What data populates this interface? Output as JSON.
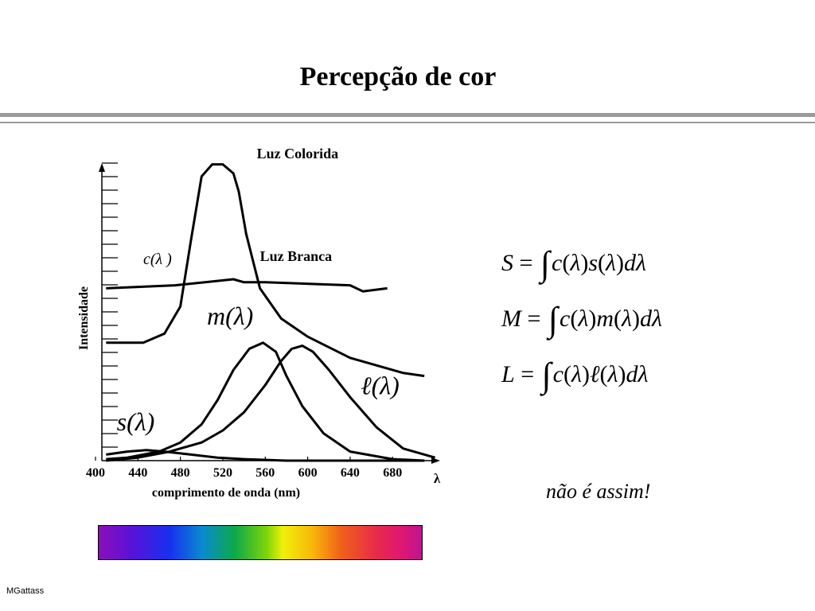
{
  "slide": {
    "title": "Percepção de cor",
    "note": "não é assim!",
    "footer": "MGattass"
  },
  "formulas": [
    {
      "lhs": "S",
      "fn": "s"
    },
    {
      "lhs": "M",
      "fn": "m"
    },
    {
      "lhs": "L",
      "fn": "ℓ"
    }
  ],
  "chart_data": {
    "type": "line",
    "xlabel": "comprimento de onda (nm)",
    "ylabel": "Intensidade",
    "x_axis_symbol": "λ",
    "x_ticks": [
      400,
      440,
      480,
      520,
      560,
      600,
      640,
      680
    ],
    "xlim": [
      400,
      725
    ],
    "ylim": [
      0,
      100
    ],
    "y_tick_count": 22,
    "grid": false,
    "series": [
      {
        "name": "c(λ )",
        "label_at": [
          445,
          65
        ],
        "values": [
          [
            410,
            39
          ],
          [
            445,
            39
          ],
          [
            465,
            42
          ],
          [
            480,
            51
          ],
          [
            490,
            73
          ],
          [
            500,
            94
          ],
          [
            510,
            98
          ],
          [
            520,
            98
          ],
          [
            530,
            95
          ],
          [
            535,
            89
          ],
          [
            542,
            75
          ],
          [
            555,
            57
          ],
          [
            575,
            47
          ],
          [
            600,
            41
          ],
          [
            640,
            34
          ],
          [
            690,
            29
          ],
          [
            710,
            28
          ]
        ]
      },
      {
        "name": "Luz Colorida",
        "label_at": [
          552,
          100
        ],
        "values": [
          [
            410,
            39
          ],
          [
            445,
            39
          ],
          [
            465,
            42
          ],
          [
            480,
            51
          ],
          [
            490,
            73
          ],
          [
            500,
            94
          ],
          [
            510,
            98
          ],
          [
            520,
            98
          ],
          [
            530,
            95
          ],
          [
            535,
            89
          ],
          [
            542,
            75
          ],
          [
            555,
            57
          ],
          [
            575,
            47
          ],
          [
            600,
            41
          ],
          [
            640,
            34
          ],
          [
            690,
            29
          ],
          [
            710,
            28
          ]
        ]
      },
      {
        "name": "Luz Branca",
        "label_at": [
          555,
          66
        ],
        "values": [
          [
            410,
            57
          ],
          [
            475,
            58
          ],
          [
            530,
            60
          ],
          [
            540,
            59
          ],
          [
            560,
            59
          ],
          [
            640,
            58
          ],
          [
            652,
            56
          ],
          [
            675,
            57
          ]
        ]
      },
      {
        "name": "m(λ)",
        "label_at": [
          505,
          45
        ],
        "values": [
          [
            410,
            0.5
          ],
          [
            430,
            1
          ],
          [
            460,
            3
          ],
          [
            480,
            6
          ],
          [
            500,
            12
          ],
          [
            515,
            20
          ],
          [
            530,
            30
          ],
          [
            545,
            37
          ],
          [
            558,
            39
          ],
          [
            570,
            36
          ],
          [
            580,
            28
          ],
          [
            595,
            18
          ],
          [
            615,
            9
          ],
          [
            640,
            3
          ],
          [
            680,
            0.5
          ],
          [
            710,
            0
          ]
        ]
      },
      {
        "name": "ℓ(λ)",
        "label_at": [
          650,
          22
        ],
        "values": [
          [
            410,
            0
          ],
          [
            440,
            1
          ],
          [
            470,
            3
          ],
          [
            500,
            6
          ],
          [
            520,
            10
          ],
          [
            540,
            16
          ],
          [
            560,
            25
          ],
          [
            575,
            33
          ],
          [
            585,
            37
          ],
          [
            595,
            38
          ],
          [
            605,
            36
          ],
          [
            620,
            30
          ],
          [
            640,
            21
          ],
          [
            665,
            11
          ],
          [
            690,
            4
          ],
          [
            720,
            1
          ]
        ]
      },
      {
        "name": "s(λ)",
        "label_at": [
          420,
          10
        ],
        "values": [
          [
            410,
            2
          ],
          [
            430,
            3
          ],
          [
            448,
            3.5
          ],
          [
            465,
            3
          ],
          [
            490,
            2
          ],
          [
            515,
            1
          ],
          [
            540,
            0.5
          ],
          [
            580,
            0
          ],
          [
            710,
            0
          ]
        ]
      }
    ]
  }
}
